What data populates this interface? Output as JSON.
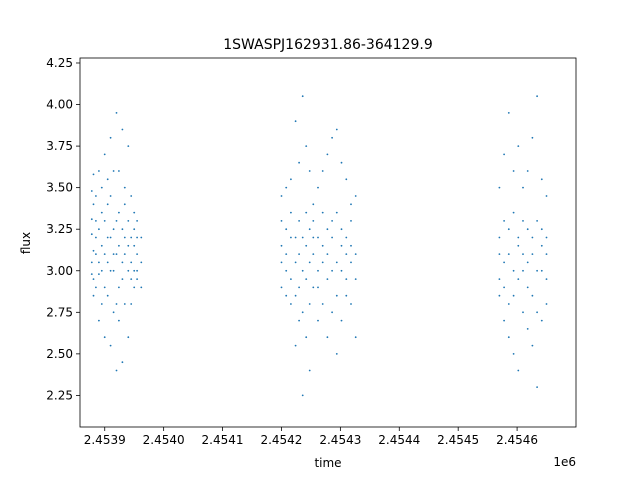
{
  "chart_data": {
    "type": "scatter",
    "title": "1SWASPJ162931.86-364129.9",
    "xlabel": "time",
    "ylabel": "flux",
    "x_offset_label": "1e6",
    "xlim": [
      2453818,
      2454660
    ],
    "ylim": [
      2.06,
      4.28
    ],
    "grid": false,
    "x_ticks": [
      {
        "value": 2453860,
        "label": "2.4539"
      },
      {
        "value": 2453960,
        "label": "2.4540"
      },
      {
        "value": 2454060,
        "label": "2.4541"
      },
      {
        "value": 2454160,
        "label": "2.4542"
      },
      {
        "value": 2454260,
        "label": "2.4543"
      },
      {
        "value": 2454360,
        "label": "2.4544"
      },
      {
        "value": 2454460,
        "label": "2.4545"
      },
      {
        "value": 2454560,
        "label": "2.4546"
      }
    ],
    "y_ticks": [
      {
        "value": 2.25,
        "label": "2.25"
      },
      {
        "value": 2.5,
        "label": "2.50"
      },
      {
        "value": 2.75,
        "label": "2.75"
      },
      {
        "value": 3.0,
        "label": "3.00"
      },
      {
        "value": 3.25,
        "label": "3.25"
      },
      {
        "value": 3.5,
        "label": "3.50"
      },
      {
        "value": 3.75,
        "label": "3.75"
      },
      {
        "value": 4.0,
        "label": "4.00"
      },
      {
        "value": 4.25,
        "label": "4.25"
      }
    ],
    "series": [
      {
        "color": "#1f77b4",
        "nights": [
          {
            "x": 2453838,
            "y": [
              2.98,
              3.22,
              3.48,
              3.05,
              3.31
            ]
          },
          {
            "x": 2453841,
            "y": [
              2.85,
              3.12,
              3.4,
              3.58,
              2.95
            ]
          },
          {
            "x": 2453845,
            "y": [
              3.1,
              3.3,
              2.9,
              3.45,
              3.2
            ]
          },
          {
            "x": 2453850,
            "y": [
              2.7,
              3.05,
              3.6,
              3.25,
              2.98
            ]
          },
          {
            "x": 2453855,
            "y": [
              3.0,
              3.35,
              3.15,
              2.8,
              3.5
            ]
          },
          {
            "x": 2453860,
            "y": [
              2.6,
              3.1,
              3.7,
              3.3,
              2.9
            ]
          },
          {
            "x": 2453865,
            "y": [
              3.05,
              3.4,
              2.85,
              3.2,
              3.55
            ]
          },
          {
            "x": 2453870,
            "y": [
              2.55,
              3.2,
              3.8,
              3.0,
              3.45
            ]
          },
          {
            "x": 2453875,
            "y": [
              3.0,
              3.25,
              2.75,
              3.6,
              3.1
            ]
          },
          {
            "x": 2453880,
            "y": [
              2.4,
              3.1,
              3.95,
              3.3,
              2.8
            ]
          },
          {
            "x": 2453884,
            "y": [
              2.9,
              3.35,
              3.6,
              2.7,
              3.15
            ]
          },
          {
            "x": 2453890,
            "y": [
              2.45,
              3.05,
              3.85,
              3.25,
              2.95
            ]
          },
          {
            "x": 2453894,
            "y": [
              3.1,
              3.4,
              2.8,
              3.2,
              3.5
            ]
          },
          {
            "x": 2453900,
            "y": [
              2.6,
              3.15,
              3.75,
              3.0,
              3.3
            ]
          },
          {
            "x": 2453905,
            "y": [
              2.8,
              3.2,
              3.45,
              3.05,
              2.95
            ]
          },
          {
            "x": 2453910,
            "y": [
              2.9,
              3.15,
              3.35,
              3.0,
              3.25
            ]
          },
          {
            "x": 2453915,
            "y": [
              3.0,
              3.1,
              3.3,
              2.95,
              3.2
            ]
          },
          {
            "x": 2453922,
            "y": [
              2.9,
              3.05,
              3.2
            ]
          },
          {
            "x": 2454160,
            "y": [
              2.9,
              3.15,
              3.45,
              3.05,
              3.3
            ]
          },
          {
            "x": 2454168,
            "y": [
              2.85,
              3.1,
              3.5,
              3.0,
              3.25
            ]
          },
          {
            "x": 2454176,
            "y": [
              2.95,
              3.2,
              3.55,
              2.8,
              3.35
            ]
          },
          {
            "x": 2454184,
            "y": [
              2.55,
              3.05,
              3.9,
              3.2,
              2.85
            ]
          },
          {
            "x": 2454190,
            "y": [
              2.7,
              3.1,
              3.65,
              3.3,
              2.9
            ]
          },
          {
            "x": 2454196,
            "y": [
              2.25,
              3.0,
              4.05,
              3.2,
              2.75
            ]
          },
          {
            "x": 2454202,
            "y": [
              2.6,
              3.15,
              3.75,
              3.35,
              2.95
            ]
          },
          {
            "x": 2454208,
            "y": [
              2.4,
              3.05,
              3.6,
              3.25,
              2.8
            ]
          },
          {
            "x": 2454214,
            "y": [
              2.9,
              3.2,
              3.4,
              3.1,
              3.3
            ]
          },
          {
            "x": 2454222,
            "y": [
              2.7,
              3.0,
              3.5,
              3.2,
              2.9
            ]
          },
          {
            "x": 2454230,
            "y": [
              2.8,
              3.15,
              3.6,
              3.05,
              3.35
            ]
          },
          {
            "x": 2454238,
            "y": [
              2.6,
              3.1,
              3.7,
              3.25,
              2.95
            ]
          },
          {
            "x": 2454246,
            "y": [
              2.75,
              3.2,
              3.8,
              3.3,
              3.0
            ]
          },
          {
            "x": 2454254,
            "y": [
              2.5,
              3.05,
              3.85,
              3.35,
              2.85
            ]
          },
          {
            "x": 2454262,
            "y": [
              2.7,
              3.15,
              3.65,
              3.25,
              3.0
            ]
          },
          {
            "x": 2454270,
            "y": [
              2.85,
              3.1,
              3.55,
              3.2,
              2.95
            ]
          },
          {
            "x": 2454278,
            "y": [
              2.8,
              3.05,
              3.4,
              3.15,
              3.3
            ]
          },
          {
            "x": 2454286,
            "y": [
              2.6,
              2.95,
              3.45,
              3.1
            ]
          },
          {
            "x": 2454530,
            "y": [
              2.85,
              3.1,
              3.5,
              3.2,
              2.95
            ]
          },
          {
            "x": 2454538,
            "y": [
              2.7,
              3.05,
              3.7,
              3.3,
              2.9
            ]
          },
          {
            "x": 2454546,
            "y": [
              2.6,
              3.1,
              3.95,
              3.25,
              2.8
            ]
          },
          {
            "x": 2454554,
            "y": [
              2.5,
              3.0,
              3.6,
              3.35,
              2.85
            ]
          },
          {
            "x": 2454562,
            "y": [
              2.4,
              3.15,
              3.75,
              3.2,
              2.95
            ]
          },
          {
            "x": 2454570,
            "y": [
              2.75,
              3.1,
              3.5,
              3.3,
              3.0
            ]
          },
          {
            "x": 2454578,
            "y": [
              2.65,
              3.05,
              3.6,
              3.25,
              2.9
            ]
          },
          {
            "x": 2454586,
            "y": [
              2.55,
              3.1,
              3.8,
              3.2,
              2.85
            ]
          },
          {
            "x": 2454594,
            "y": [
              2.3,
              3.0,
              4.05,
              3.3,
              2.75
            ]
          },
          {
            "x": 2454602,
            "y": [
              2.7,
              3.15,
              3.55,
              3.25,
              3.0
            ]
          },
          {
            "x": 2454610,
            "y": [
              2.8,
              3.1,
              3.45,
              3.2,
              2.95
            ]
          }
        ]
      }
    ]
  }
}
